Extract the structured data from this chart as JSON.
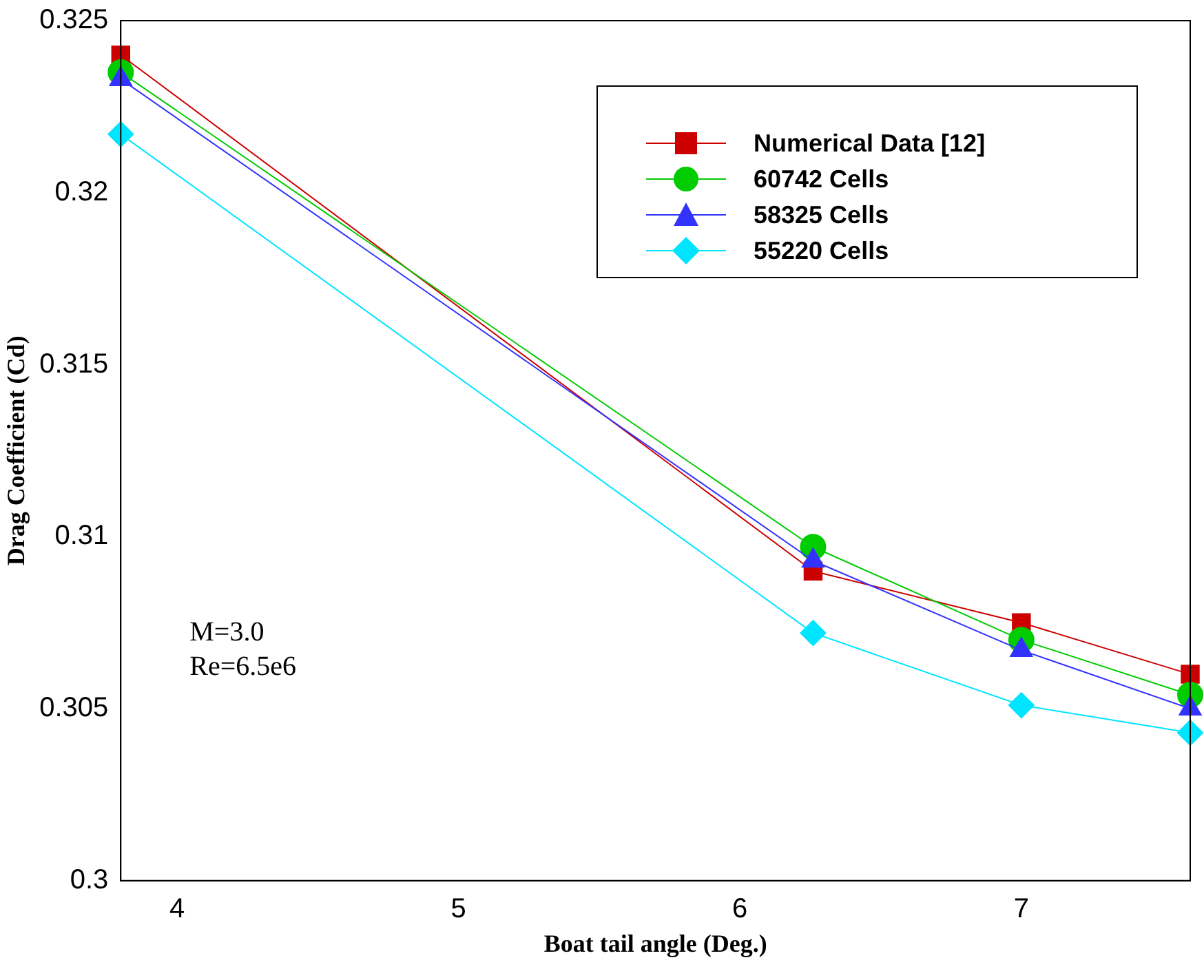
{
  "chart_data": {
    "type": "line",
    "xlabel": "Boat tail angle (Deg.)",
    "ylabel": "Drag Coefficient (Cd)",
    "x": [
      3.8,
      6.26,
      7,
      7.6
    ],
    "series": [
      {
        "name": "Numerical Data [12]",
        "color": "#cc0000",
        "marker": "square",
        "values": [
          0.324,
          0.309,
          0.3075,
          0.306
        ]
      },
      {
        "name": "60742 Cells",
        "color": "#00cc00",
        "marker": "circle",
        "values": [
          0.3235,
          0.3097,
          0.307,
          0.3054
        ]
      },
      {
        "name": "58325 Cells",
        "color": "#3333ff",
        "marker": "triangle",
        "values": [
          0.3233,
          0.3093,
          0.3067,
          0.305
        ]
      },
      {
        "name": "55220 Cells",
        "color": "#00e5ff",
        "marker": "diamond",
        "values": [
          0.3217,
          0.3072,
          0.3051,
          0.3043
        ]
      }
    ],
    "xlim": [
      3.8,
      7.6
    ],
    "xticks": [
      4,
      5,
      6,
      7
    ],
    "ylim": [
      0.3,
      0.325
    ],
    "yticks": [
      0.3,
      0.305,
      0.31,
      0.315,
      0.32,
      0.325
    ],
    "grid": false,
    "legend": "top right",
    "line_style": "solid",
    "annotations": [
      "M=3.0",
      "Re=6.5e6"
    ]
  }
}
